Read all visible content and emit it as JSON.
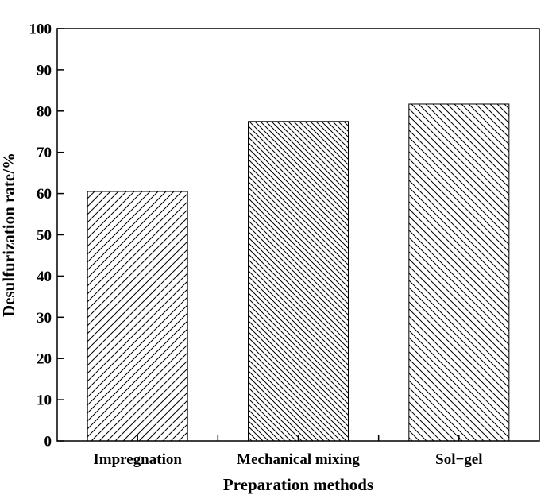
{
  "chart_data": {
    "type": "bar",
    "title": "",
    "xlabel": "Preparation methods",
    "ylabel": "Desulfurization rate/%",
    "categories": [
      "Impregnation",
      "Mechanical mixing",
      "Sol−gel"
    ],
    "values": [
      60.5,
      77.5,
      81.7
    ],
    "ylim": [
      0,
      100
    ],
    "yticks": [
      0,
      10,
      20,
      30,
      40,
      50,
      60,
      70,
      80,
      90,
      100
    ],
    "ytick_labels": [
      "0",
      "10",
      "20",
      "30",
      "40",
      "50",
      "60",
      "70",
      "80",
      "90",
      "100"
    ],
    "grid": false,
    "legend": "none",
    "bar_patterns": [
      "hatch-forward",
      "hatch-backward-dense",
      "hatch-backward"
    ],
    "bar_color": "#ffffff",
    "line_color": "#000000"
  }
}
